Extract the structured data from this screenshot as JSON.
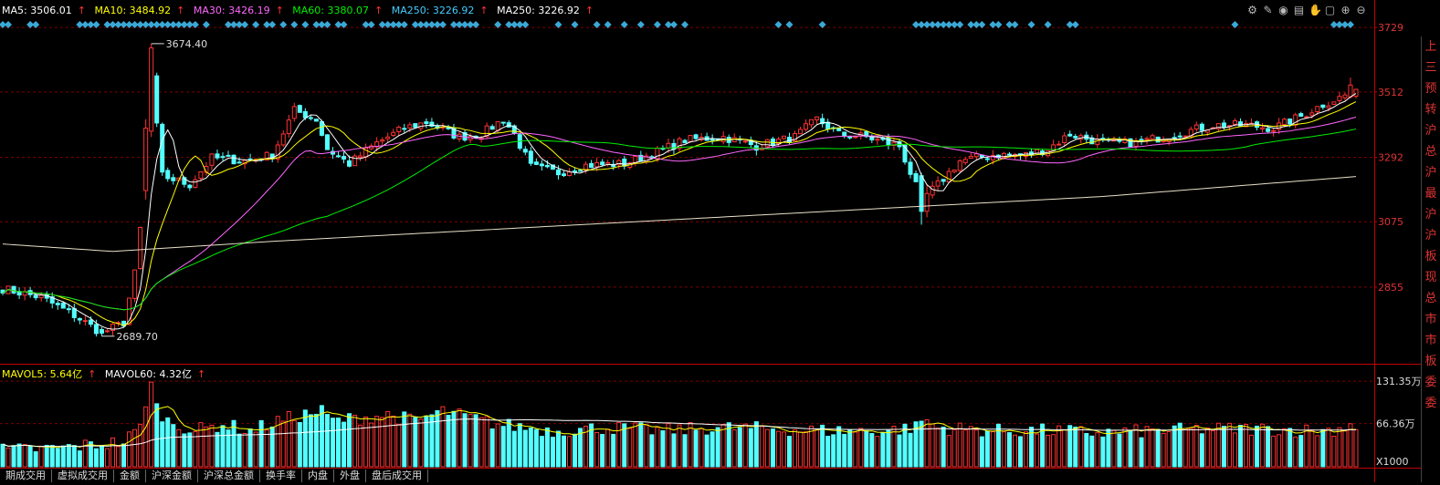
{
  "indicators": {
    "ma5": {
      "label": "MA5: 3506.01",
      "color": "#ffffff"
    },
    "ma10": {
      "label": "MA10: 3484.92",
      "color": "#ffff00"
    },
    "ma30": {
      "label": "MA30: 3426.19",
      "color": "#ff66ff"
    },
    "ma60": {
      "label": "MA60: 3380.07",
      "color": "#00ee00"
    },
    "ma250a": {
      "label": "MA250: 3226.92",
      "color": "#44ccff"
    },
    "ma250b": {
      "label": "MA250: 3226.92",
      "color": "#ffffff"
    },
    "mavol5": {
      "label": "MAVOL5: 5.64亿",
      "color": "#ffff00"
    },
    "mavol60": {
      "label": "MAVOL60: 4.32亿",
      "color": "#ffffff"
    }
  },
  "up_arrow": "↑",
  "toolbar_icons": [
    "settings-icon",
    "pen-icon",
    "eye-icon",
    "print-icon",
    "hand-icon",
    "lock-icon",
    "zoom-in-icon",
    "zoom-out-icon"
  ],
  "right_panel_text": [
    "上",
    "三",
    "预",
    "转",
    "沪",
    "总",
    "沪",
    "最",
    "沪",
    "沪",
    "板",
    "现",
    "总",
    "市",
    "市",
    "板",
    "委",
    "委"
  ],
  "tabs": [
    "期成交用",
    "虚拟成交用",
    "金额",
    "沪深金额",
    "沪深总金额",
    "换手率",
    "内盘",
    "外盘",
    "盘后成交用"
  ],
  "colors": {
    "up": "#ff3232",
    "down": "#54ffff",
    "grid": "#7a0000",
    "axis": "#c00000"
  },
  "chart_data": [
    {
      "type": "candlestick",
      "ylim": [
        2600,
        3760
      ],
      "y_ticks": [
        {
          "value": 3729,
          "label": "3729"
        },
        {
          "value": 3512,
          "label": "3512"
        },
        {
          "value": 3292,
          "label": "3292"
        },
        {
          "value": 3075,
          "label": "3075"
        },
        {
          "value": 2855,
          "label": "2855"
        }
      ],
      "annotations": [
        {
          "label": "3674.40",
          "index": 27,
          "value": 3674.4
        },
        {
          "label": "2689.70",
          "index": 18,
          "value": 2689.7
        }
      ],
      "anchors": [
        [
          0,
          2850
        ],
        [
          7,
          2820
        ],
        [
          13,
          2760
        ],
        [
          18,
          2700
        ],
        [
          22,
          2735
        ],
        [
          24,
          2900
        ],
        [
          26,
          3200
        ],
        [
          27,
          3560
        ],
        [
          29,
          3230
        ],
        [
          34,
          3200
        ],
        [
          38,
          3290
        ],
        [
          44,
          3280
        ],
        [
          49,
          3300
        ],
        [
          53,
          3450
        ],
        [
          57,
          3420
        ],
        [
          59,
          3320
        ],
        [
          63,
          3270
        ],
        [
          68,
          3340
        ],
        [
          73,
          3390
        ],
        [
          77,
          3410
        ],
        [
          83,
          3360
        ],
        [
          87,
          3370
        ],
        [
          91,
          3420
        ],
        [
          93,
          3370
        ],
        [
          96,
          3260
        ],
        [
          101,
          3240
        ],
        [
          106,
          3265
        ],
        [
          113,
          3270
        ],
        [
          119,
          3310
        ],
        [
          124,
          3350
        ],
        [
          131,
          3360
        ],
        [
          137,
          3330
        ],
        [
          144,
          3360
        ],
        [
          148,
          3420
        ],
        [
          152,
          3370
        ],
        [
          157,
          3360
        ],
        [
          163,
          3330
        ],
        [
          167,
          3150
        ],
        [
          170,
          3200
        ],
        [
          174,
          3280
        ],
        [
          180,
          3300
        ],
        [
          186,
          3300
        ],
        [
          190,
          3320
        ],
        [
          194,
          3370
        ],
        [
          200,
          3340
        ],
        [
          206,
          3340
        ],
        [
          213,
          3370
        ],
        [
          220,
          3400
        ],
        [
          226,
          3400
        ],
        [
          231,
          3390
        ],
        [
          236,
          3430
        ],
        [
          240,
          3470
        ],
        [
          244,
          3500
        ],
        [
          246,
          3506
        ]
      ],
      "special_candles": [
        {
          "index": 26,
          "open": 3180,
          "close": 3390,
          "high": 3420,
          "low": 3150
        },
        {
          "index": 27,
          "open": 3380,
          "close": 3660,
          "high": 3674.4,
          "low": 3360
        },
        {
          "index": 18,
          "open": 2712,
          "close": 2700,
          "high": 2720,
          "low": 2689.7
        },
        {
          "index": 167,
          "open": 3230,
          "close": 3110,
          "high": 3240,
          "low": 3065
        },
        {
          "index": 168,
          "open": 3110,
          "close": 3170,
          "high": 3200,
          "low": 3090
        },
        {
          "index": 245,
          "open": 3495,
          "close": 3535,
          "high": 3560,
          "low": 3490
        }
      ],
      "ma_lines": [
        {
          "name": "MA5",
          "color": "#ffffff",
          "window": 5
        },
        {
          "name": "MA10",
          "color": "#ffff00",
          "window": 10
        },
        {
          "name": "MA30",
          "color": "#ff66ff",
          "window": 30
        },
        {
          "name": "MA60",
          "color": "#00ee00",
          "window": 60
        },
        {
          "name": "MA250",
          "color": "#e8e0c8",
          "points": [
            [
              0,
              3000
            ],
            [
              20,
              2975
            ],
            [
              50,
              3010
            ],
            [
              100,
              3060
            ],
            [
              150,
              3110
            ],
            [
              200,
              3160
            ],
            [
              246,
              3227
            ]
          ]
        }
      ],
      "signal_markers_indices": [
        0,
        1,
        5,
        6,
        14,
        15,
        16,
        17,
        19,
        20,
        21,
        22,
        23,
        24,
        25,
        26,
        27,
        28,
        29,
        30,
        31,
        32,
        33,
        34,
        35,
        37,
        41,
        42,
        43,
        44,
        46,
        48,
        49,
        51,
        53,
        55,
        57,
        58,
        59,
        61,
        62,
        66,
        67,
        69,
        70,
        71,
        72,
        73,
        75,
        76,
        77,
        78,
        79,
        80,
        82,
        83,
        84,
        85,
        86,
        90,
        92,
        93,
        94,
        95,
        101,
        104,
        108,
        110,
        113,
        116,
        119,
        121,
        122,
        124,
        141,
        143,
        149,
        166,
        167,
        168,
        169,
        170,
        171,
        172,
        173,
        174,
        176,
        177,
        178,
        180,
        181,
        183,
        184,
        187,
        190,
        194,
        195,
        224,
        242,
        243,
        244,
        245
      ],
      "n_candles": 247
    },
    {
      "type": "bar",
      "name": "volume",
      "ylim": [
        0,
        140
      ],
      "y_ticks": [
        {
          "value": 131.35,
          "label": "131.35万"
        },
        {
          "value": 66.36,
          "label": "66.36万"
        }
      ],
      "unit_label": "X1000",
      "anchors": [
        [
          0,
          25
        ],
        [
          10,
          28
        ],
        [
          18,
          35
        ],
        [
          22,
          38
        ],
        [
          25,
          60
        ],
        [
          26,
          95
        ],
        [
          27,
          130
        ],
        [
          28,
          90
        ],
        [
          30,
          70
        ],
        [
          35,
          55
        ],
        [
          40,
          65
        ],
        [
          45,
          55
        ],
        [
          50,
          70
        ],
        [
          55,
          80
        ],
        [
          58,
          85
        ],
        [
          60,
          70
        ],
        [
          65,
          75
        ],
        [
          70,
          80
        ],
        [
          75,
          70
        ],
        [
          80,
          85
        ],
        [
          85,
          75
        ],
        [
          90,
          65
        ],
        [
          95,
          60
        ],
        [
          100,
          55
        ],
        [
          110,
          60
        ],
        [
          120,
          55
        ],
        [
          130,
          60
        ],
        [
          140,
          58
        ],
        [
          150,
          55
        ],
        [
          160,
          55
        ],
        [
          166,
          60
        ],
        [
          167,
          70
        ],
        [
          168,
          70
        ],
        [
          170,
          60
        ],
        [
          180,
          55
        ],
        [
          190,
          55
        ],
        [
          200,
          52
        ],
        [
          210,
          55
        ],
        [
          220,
          58
        ],
        [
          230,
          58
        ],
        [
          240,
          55
        ],
        [
          244,
          60
        ],
        [
          245,
          70
        ],
        [
          246,
          60
        ]
      ],
      "mavol_lines": [
        {
          "name": "MAVOL5",
          "color": "#ffff00",
          "window": 5
        },
        {
          "name": "MAVOL60",
          "color": "#ffffff",
          "window": 60
        }
      ]
    }
  ]
}
